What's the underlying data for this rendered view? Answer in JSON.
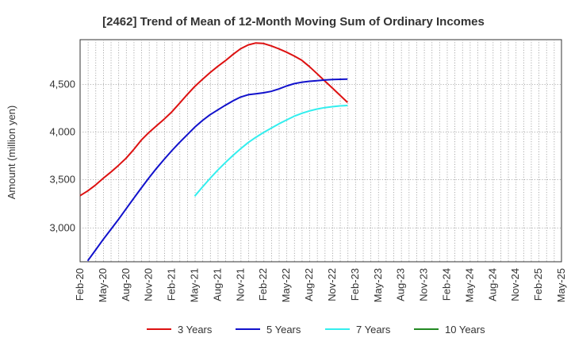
{
  "chart_data": {
    "type": "line",
    "title": "[2462]  Trend of Mean of 12-Month Moving Sum of Ordinary Incomes",
    "xlabel": "",
    "ylabel": "Amount (million yen)",
    "x_tick_labels": [
      "Feb-20",
      "May-20",
      "Aug-20",
      "Nov-20",
      "Feb-21",
      "May-21",
      "Aug-21",
      "Nov-21",
      "Feb-22",
      "May-22",
      "Aug-22",
      "Nov-22",
      "Feb-23",
      "May-23",
      "Aug-23",
      "Nov-23",
      "Feb-24",
      "May-24",
      "Aug-24",
      "Nov-24",
      "Feb-25",
      "May-25"
    ],
    "y_ticks": [
      3000,
      3500,
      4000,
      4500
    ],
    "y_tick_labels": [
      "3,000",
      "3,500",
      "4,000",
      "4,500"
    ],
    "ylim": [
      2640,
      4960
    ],
    "grid": true,
    "legend_position": "bottom",
    "series": [
      {
        "name": "3 Years",
        "color": "#dd1111",
        "start_index": 0,
        "values": [
          3330,
          3380,
          3440,
          3510,
          3575,
          3645,
          3720,
          3810,
          3910,
          3990,
          4060,
          4130,
          4205,
          4295,
          4385,
          4470,
          4545,
          4615,
          4680,
          4740,
          4805,
          4865,
          4905,
          4925,
          4920,
          4895,
          4865,
          4830,
          4790,
          4745,
          4680,
          4605,
          4530,
          4455,
          4380,
          4305
        ]
      },
      {
        "name": "5 Years",
        "color": "#1111cc",
        "start_index": 1,
        "values": [
          2650,
          2760,
          2870,
          2975,
          3080,
          3190,
          3300,
          3410,
          3515,
          3615,
          3710,
          3800,
          3885,
          3965,
          4045,
          4115,
          4175,
          4225,
          4275,
          4320,
          4360,
          4385,
          4395,
          4405,
          4420,
          4445,
          4475,
          4500,
          4515,
          4525,
          4532,
          4538,
          4543,
          4546,
          4548
        ]
      },
      {
        "name": "7 Years",
        "color": "#33eeee",
        "start_index": 15,
        "values": [
          3325,
          3420,
          3510,
          3595,
          3675,
          3750,
          3820,
          3885,
          3940,
          3990,
          4035,
          4080,
          4120,
          4160,
          4190,
          4215,
          4235,
          4250,
          4260,
          4268,
          4272
        ]
      },
      {
        "name": "10 Years",
        "color": "#228822",
        "start_index": 0,
        "values": []
      }
    ]
  }
}
